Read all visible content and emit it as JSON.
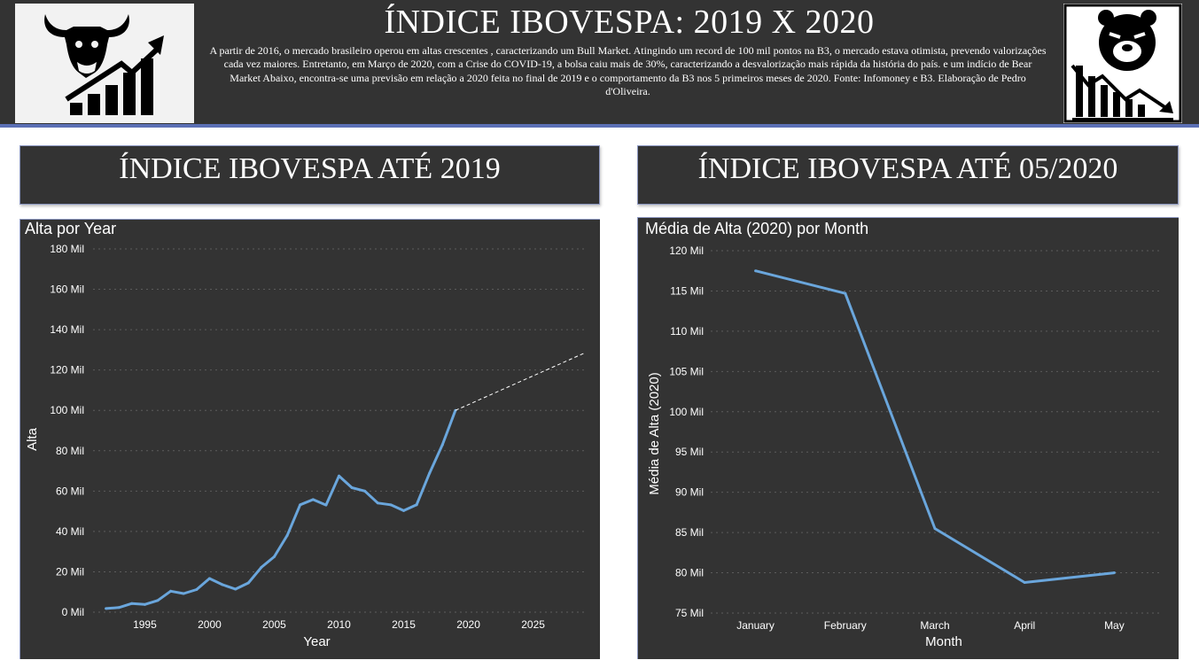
{
  "header": {
    "title": "ÍNDICE IBOVESPA: 2019 X  2020",
    "description": "A partir de 2016, o mercado brasileiro operou em altas crescentes , caracterizando um Bull Market. Atingindo um record de 100 mil pontos na B3, o mercado estava otimista, prevendo valorizações cada vez maiores. Entretanto, em Março de 2020, com a Crise do COVID-19, a bolsa caiu mais de 30%, caracterizando a desvalorização mais rápida da história do país. e um indício de Bear Market Abaixo, encontra-se uma previsão em relação a 2020 feita no final de 2019  e o comportamento da B3 nos 5 primeiros meses de 2020. Fonte: Infomoney e B3. Elaboração de Pedro d'Oliveira.",
    "left_logo_icon": "bull-chart-icon",
    "right_logo_icon": "bear-chart-icon"
  },
  "cards": {
    "left_title": "ÍNDICE IBOVESPA ATÉ 2019",
    "right_title": "ÍNDICE IBOVESPA ATÉ 05/2020"
  },
  "colors": {
    "background": "#333333",
    "line": "#6aa6dc",
    "forecast": "#ffffff",
    "grid": "#5c5c5c",
    "text": "#ffffff"
  },
  "chart_data": [
    {
      "type": "line",
      "title": "Alta por Year",
      "xlabel": "Year",
      "ylabel": "Alta",
      "xlim": [
        1991,
        2029
      ],
      "ylim": [
        0,
        180000
      ],
      "xticks": [
        1995,
        2000,
        2005,
        2010,
        2015,
        2020,
        2025
      ],
      "yticks": [
        0,
        20000,
        40000,
        60000,
        80000,
        100000,
        120000,
        140000,
        160000,
        180000
      ],
      "ytick_labels": [
        "0 Mil",
        "20 Mil",
        "40 Mil",
        "60 Mil",
        "80 Mil",
        "100 Mil",
        "120 Mil",
        "140 Mil",
        "160 Mil",
        "180 Mil"
      ],
      "grid": true,
      "series": [
        {
          "x": [
            1992,
            1993,
            1994,
            1995,
            1996,
            1997,
            1998,
            1999,
            2000,
            2001,
            2002,
            2003,
            2004,
            2005,
            2006,
            2007,
            2008,
            2009,
            2010,
            2011,
            2012,
            2013,
            2014,
            2015,
            2016,
            2017,
            2018,
            2019
          ],
          "values": [
            1800,
            2300,
            4300,
            3800,
            5800,
            10400,
            9200,
            11200,
            16700,
            13600,
            11400,
            14500,
            22200,
            27500,
            38000,
            53200,
            55800,
            53100,
            67500,
            61700,
            60000,
            54100,
            53200,
            50300,
            53200,
            68900,
            83000,
            100000
          ]
        }
      ],
      "forecast": {
        "x": [
          2019,
          2029
        ],
        "values": [
          100000,
          128500
        ]
      }
    },
    {
      "type": "line",
      "title": "Média de Alta (2020) por Month",
      "xlabel": "Month",
      "ylabel": "Média de Alta (2020)",
      "ylim": [
        75000,
        120000
      ],
      "yticks": [
        75000,
        80000,
        85000,
        90000,
        95000,
        100000,
        105000,
        110000,
        115000,
        120000
      ],
      "ytick_labels": [
        "75 Mil",
        "80 Mil",
        "85 Mil",
        "90 Mil",
        "95 Mil",
        "100 Mil",
        "105 Mil",
        "110 Mil",
        "115 Mil",
        "120 Mil"
      ],
      "categories": [
        "January",
        "February",
        "March",
        "April",
        "May"
      ],
      "grid": true,
      "series": [
        {
          "values": [
            117500,
            114700,
            85500,
            78800,
            80000
          ]
        }
      ]
    }
  ]
}
